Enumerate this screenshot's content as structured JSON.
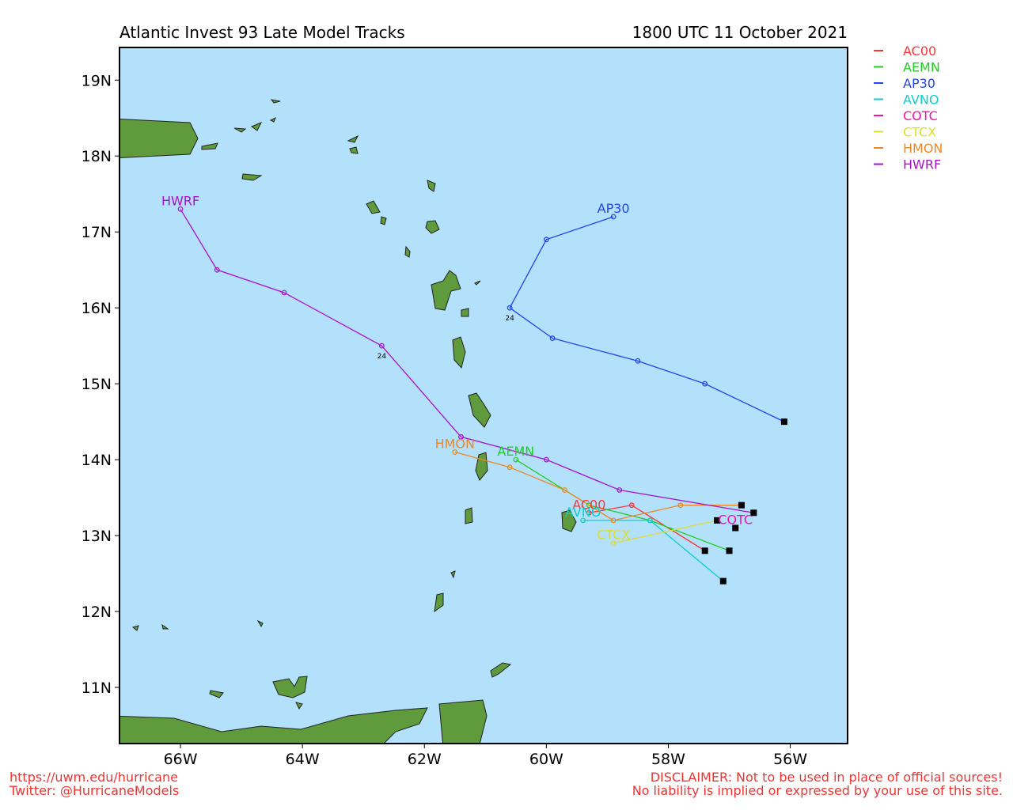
{
  "chart_data": {
    "type": "line",
    "title": "Atlantic Invest 93 Late Model Tracks",
    "subtitle": "1800 UTC 11 October 2021",
    "xlim": [
      -67,
      -55.06
    ],
    "ylim": [
      10.26,
      19.43
    ],
    "xticks": [
      {
        "value": -66,
        "label": "66W"
      },
      {
        "value": -64,
        "label": "64W"
      },
      {
        "value": -62,
        "label": "62W"
      },
      {
        "value": -60,
        "label": "60W"
      },
      {
        "value": -58,
        "label": "58W"
      },
      {
        "value": -56,
        "label": "56W"
      }
    ],
    "yticks": [
      {
        "value": 11,
        "label": "11N"
      },
      {
        "value": 12,
        "label": "12N"
      },
      {
        "value": 13,
        "label": "13N"
      },
      {
        "value": 14,
        "label": "14N"
      },
      {
        "value": 15,
        "label": "15N"
      },
      {
        "value": 16,
        "label": "16N"
      },
      {
        "value": 17,
        "label": "17N"
      },
      {
        "value": 18,
        "label": "18N"
      },
      {
        "value": 19,
        "label": "19N"
      }
    ],
    "legend": "outside-right",
    "series": [
      {
        "name": "AC00",
        "color": "#ff3333",
        "x": [
          -57.4,
          -58.6,
          -59.3
        ],
        "values": [
          12.8,
          13.4,
          13.3
        ]
      },
      {
        "name": "AEMN",
        "color": "#22cc22",
        "x": [
          -57.0,
          -58.3,
          -59.3,
          -60.5
        ],
        "values": [
          12.8,
          13.2,
          13.4,
          14.0
        ]
      },
      {
        "name": "AP30",
        "color": "#2244ee",
        "x": [
          -56.1,
          -57.4,
          -58.5,
          -59.9,
          -60.6,
          -60.0,
          -58.9
        ],
        "values": [
          14.5,
          15.0,
          15.3,
          15.6,
          16.0,
          16.9,
          17.2
        ]
      },
      {
        "name": "AVNO",
        "color": "#11cccc",
        "x": [
          -57.1,
          -58.3,
          -59.4
        ],
        "values": [
          12.4,
          13.2,
          13.2
        ]
      },
      {
        "name": "COTC",
        "color": "#ee11aa",
        "x": [
          -56.9
        ],
        "values": [
          13.1
        ]
      },
      {
        "name": "CTCX",
        "color": "#dddd33",
        "x": [
          -57.2,
          -58.9
        ],
        "values": [
          13.2,
          12.9
        ]
      },
      {
        "name": "HMON",
        "color": "#ee8822",
        "x": [
          -56.8,
          -57.8,
          -58.9,
          -59.7,
          -60.6,
          -61.5
        ],
        "values": [
          13.4,
          13.4,
          13.2,
          13.6,
          13.9,
          14.1
        ]
      },
      {
        "name": "HWRF",
        "color": "#aa11cc",
        "x": [
          -56.6,
          -58.8,
          -60.0,
          -61.4,
          -62.7,
          -64.3,
          -65.4,
          -66.0
        ],
        "values": [
          13.3,
          13.6,
          14.0,
          14.3,
          15.5,
          16.2,
          16.5,
          17.3
        ]
      }
    ],
    "annotations": [
      {
        "text": "24",
        "x": -60.6,
        "y": 16.0
      },
      {
        "text": "24",
        "x": -62.7,
        "y": 15.5
      }
    ],
    "source_lines": [
      "https://uwm.edu/hurricane",
      "Twitter: @HurricaneModels"
    ],
    "disclaimer_lines": [
      "DISCLAIMER: Not to be used in place of official sources!",
      "No liability is implied or expressed by your use of this site."
    ]
  }
}
